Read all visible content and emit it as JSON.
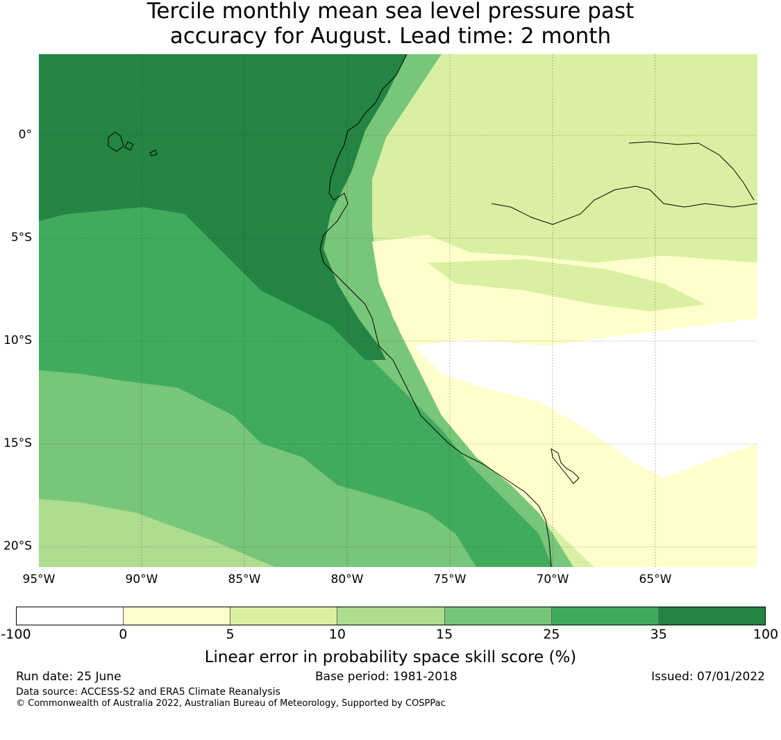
{
  "title_line1": "Tercile monthly mean sea level pressure past",
  "title_line2": "accuracy for August. Lead time: 2 month",
  "lat_labels": [
    "0°",
    "5°S",
    "10°S",
    "15°S",
    "20°S"
  ],
  "lon_labels": [
    "95°W",
    "90°W",
    "85°W",
    "80°W",
    "75°W",
    "70°W",
    "65°W"
  ],
  "colorbar": {
    "ticks": [
      "-100",
      "0",
      "5",
      "10",
      "15",
      "25",
      "35",
      "100"
    ],
    "colors": [
      "#ffffff",
      "#ffffcc",
      "#d9f0a3",
      "#addd8e",
      "#78c679",
      "#41ab5d",
      "#238443"
    ],
    "label": "Linear error in probability space skill score (%)"
  },
  "footer": {
    "run_date": "Run date: 25 June",
    "base_period": "Base period: 1981-2018",
    "issued": "Issued: 07/01/2022",
    "data_source": "Data source: ACCESS-S2 and ERA5 Climate Reanalysis",
    "copyright": "© Commonwealth of Australia 2022, Australian Bureau of Meteorology, Supported by COSPPac"
  }
}
